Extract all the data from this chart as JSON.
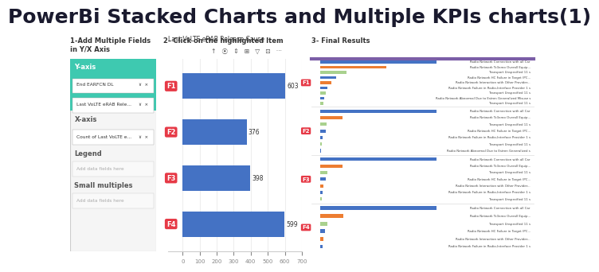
{
  "title": "PowerBi Stacked Charts and Multiple KPIs charts(1)",
  "title_fontsize": 18,
  "title_color": "#1a1a2e",
  "bg_color": "#ffffff",
  "section_label_color": "#333333",
  "sections": [
    "1-Add Multiple Fields\nin Y/X Axis",
    "2- Click on the highlighted Item",
    "3- Final Results"
  ],
  "panel1": {
    "yaxis_label": "Y-axis",
    "yaxis_fields": [
      "End EARFCN DL",
      "Last VoLTE eRAB Rele..."
    ],
    "xaxis_label": "X-axis",
    "xaxis_fields": [
      "Count of Last VoLTE e..."
    ],
    "legend_label": "Legend",
    "legend_placeholder": "Add data fields here",
    "small_multiples_label": "Small multiples",
    "small_multiples_placeholder": "Add data fields here"
  },
  "panel2": {
    "chart_title": "Last VoLTE eRAB Release Cause",
    "bar_color": "#4472c4",
    "bar_values": [
      603,
      376,
      398,
      599
    ],
    "bar_labels": [
      "F1",
      "F2",
      "F3",
      "F4"
    ],
    "x_max": 700,
    "x_ticks": [
      0,
      100,
      200,
      300,
      400,
      500,
      600,
      700
    ]
  },
  "panel3": {
    "section_groups": [
      {
        "badge": "F1",
        "bars": [
          {
            "label": "Radio Network Connection with all Car",
            "value": 88,
            "color": "#4472c4"
          },
          {
            "label": "Radio Network Tc3emo Overall Equip...",
            "value": 50,
            "color": "#ed7d31"
          },
          {
            "label": "Transport Unspecified 11 s",
            "value": 20,
            "color": "#a9d18e"
          },
          {
            "label": "Radio Network HC Failure in Target (PC...",
            "value": 12,
            "color": "#4472c4"
          },
          {
            "label": "Radio Network Interaction with Other Provider...",
            "value": 8,
            "color": "#ed7d31"
          },
          {
            "label": "Radio Network Failure in Radio-Interface Provider 1 s",
            "value": 5,
            "color": "#4472c4"
          },
          {
            "label": "Transport Unspecified 11 s",
            "value": 4,
            "color": "#a9d18e"
          },
          {
            "label": "Radio Network Abnormal Due to Estren Generalized Misuse s",
            "value": 3,
            "color": "#4472c4"
          },
          {
            "label": "Transport Unspecified 11 s",
            "value": 2,
            "color": "#a9d18e"
          }
        ]
      },
      {
        "badge": "F2",
        "bars": [
          {
            "label": "Radio Network Connection with all Car",
            "value": 319,
            "color": "#4472c4"
          },
          {
            "label": "Radio Network Tc3emo Overall Equip...",
            "value": 60,
            "color": "#ed7d31"
          },
          {
            "label": "Transport Unspecified 11 s",
            "value": 18,
            "color": "#a9d18e"
          },
          {
            "label": "Radio Network HC Failure in Target (PC...",
            "value": 14,
            "color": "#4472c4"
          },
          {
            "label": "Radio Network Failure in Radio-Interface Provider 1 s",
            "value": 7,
            "color": "#4472c4"
          },
          {
            "label": "Transport Unspecified 11 s",
            "value": 4,
            "color": "#a9d18e"
          },
          {
            "label": "Radio Network Abnormal Due to Estren Generalized s",
            "value": 2,
            "color": "#4472c4"
          }
        ]
      },
      {
        "badge": "F3",
        "bars": [
          {
            "label": "Radio Network Connection with all Car",
            "value": 336,
            "color": "#4472c4"
          },
          {
            "label": "Radio Network Tc3emo Overall Equip...",
            "value": 65,
            "color": "#ed7d31"
          },
          {
            "label": "Transport Unspecified 11 s",
            "value": 20,
            "color": "#a9d18e"
          },
          {
            "label": "Radio Network HC Failure in Target (PC...",
            "value": 16,
            "color": "#4472c4"
          },
          {
            "label": "Radio Network Interaction with Other Provider...",
            "value": 9,
            "color": "#ed7d31"
          },
          {
            "label": "Radio Network Failure in Radio-Interface Provider 1 s",
            "value": 6,
            "color": "#4472c4"
          },
          {
            "label": "Transport Unspecified 11 s",
            "value": 3,
            "color": "#a9d18e"
          }
        ]
      },
      {
        "badge": "F4",
        "bars": [
          {
            "label": "Radio Network Connection with all Car",
            "value": 280,
            "color": "#4472c4"
          },
          {
            "label": "Radio Network Tc3emo Overall Equip...",
            "value": 55,
            "color": "#ed7d31"
          },
          {
            "label": "Transport Unspecified 11 s",
            "value": 16,
            "color": "#a9d18e"
          },
          {
            "label": "Radio Network HC Failure in Target (PC...",
            "value": 12,
            "color": "#4472c4"
          },
          {
            "label": "Radio Network Interaction with Other Provider...",
            "value": 7,
            "color": "#ed7d31"
          },
          {
            "label": "Radio Network Failure in Radio-Interface Provider 1 s",
            "value": 5,
            "color": "#4472c4"
          }
        ]
      }
    ]
  }
}
